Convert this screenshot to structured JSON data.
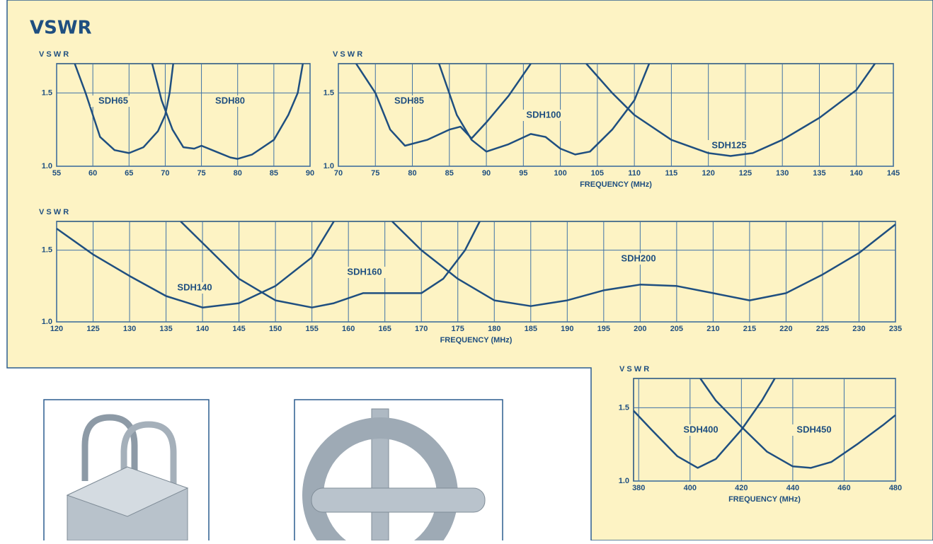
{
  "header": {
    "title": "VSWR"
  },
  "chart_data": [
    {
      "type": "line",
      "y_label": "V S W R",
      "xlim": [
        55,
        90
      ],
      "xticks": [
        55,
        60,
        65,
        70,
        75,
        80,
        85,
        90
      ],
      "ylim": [
        1,
        1.7
      ],
      "yticks": [
        {
          "value": 1,
          "label": "1.0"
        },
        1.5
      ],
      "grid": true,
      "series": [
        {
          "name": "SDH65",
          "color": "#1f4f80",
          "x": [
            57.5,
            59,
            61,
            63,
            65,
            67,
            69,
            70,
            70.6,
            71.1
          ],
          "values": [
            1.7,
            1.5,
            1.2,
            1.11,
            1.09,
            1.13,
            1.24,
            1.35,
            1.5,
            1.7
          ]
        },
        {
          "name": "SDH80",
          "color": "#1f4f80",
          "x": [
            68.2,
            69.5,
            71,
            72.5,
            74,
            75,
            77,
            79,
            80,
            82,
            85,
            87,
            88.3,
            89
          ],
          "values": [
            1.7,
            1.45,
            1.25,
            1.13,
            1.12,
            1.14,
            1.1,
            1.06,
            1.05,
            1.08,
            1.18,
            1.35,
            1.5,
            1.7
          ]
        }
      ]
    },
    {
      "type": "line",
      "y_label": "V S W R",
      "x_label": "FREQUENCY (MHz)",
      "xlim": [
        70,
        145
      ],
      "xticks": [
        70,
        75,
        80,
        85,
        90,
        95,
        100,
        105,
        110,
        115,
        120,
        125,
        130,
        135,
        140,
        145
      ],
      "ylim": [
        1,
        1.7
      ],
      "yticks": [
        {
          "value": 1,
          "label": "1.0"
        },
        1.5
      ],
      "grid": true,
      "series": [
        {
          "name": "SDH85",
          "color": "#1f4f80",
          "x": [
            72.4,
            75,
            77,
            79,
            82,
            85,
            86.5,
            88,
            90,
            93,
            96
          ],
          "values": [
            1.7,
            1.5,
            1.25,
            1.14,
            1.18,
            1.25,
            1.27,
            1.19,
            1.3,
            1.48,
            1.7
          ]
        },
        {
          "name": "SDH100",
          "color": "#1f4f80",
          "x": [
            83.6,
            86,
            88,
            90,
            93,
            96,
            98,
            100,
            102,
            104,
            107,
            110,
            112
          ],
          "values": [
            1.7,
            1.35,
            1.18,
            1.1,
            1.15,
            1.22,
            1.2,
            1.12,
            1.08,
            1.1,
            1.25,
            1.45,
            1.7
          ]
        },
        {
          "name": "SDH125",
          "color": "#1f4f80",
          "x": [
            103.5,
            107,
            110,
            115,
            120,
            123,
            126,
            130,
            135,
            140,
            142.5
          ],
          "values": [
            1.7,
            1.5,
            1.35,
            1.18,
            1.09,
            1.07,
            1.09,
            1.18,
            1.33,
            1.52,
            1.7
          ]
        }
      ]
    },
    {
      "type": "line",
      "y_label": "V S W R",
      "x_label": "FREQUENCY (MHz)",
      "xlim": [
        120,
        235
      ],
      "xticks": [
        120,
        125,
        130,
        135,
        140,
        145,
        150,
        155,
        160,
        165,
        170,
        175,
        180,
        185,
        190,
        195,
        200,
        205,
        210,
        215,
        220,
        225,
        230,
        235
      ],
      "ylim": [
        1,
        1.7
      ],
      "yticks": [
        {
          "value": 1,
          "label": "1.0"
        },
        1.5
      ],
      "grid": true,
      "series": [
        {
          "name": "SDH140",
          "color": "#1f4f80",
          "x": [
            120,
            125,
            130,
            135,
            140,
            145,
            150,
            155,
            158
          ],
          "values": [
            1.65,
            1.47,
            1.32,
            1.18,
            1.1,
            1.13,
            1.25,
            1.45,
            1.7
          ]
        },
        {
          "name": "SDH160",
          "color": "#1f4f80",
          "x": [
            137,
            140,
            145,
            150,
            155,
            158,
            162,
            165,
            170,
            173,
            176,
            178
          ],
          "values": [
            1.7,
            1.55,
            1.3,
            1.15,
            1.1,
            1.13,
            1.2,
            1.2,
            1.2,
            1.3,
            1.5,
            1.7
          ]
        },
        {
          "name": "SDH200",
          "color": "#1f4f80",
          "x": [
            166,
            170,
            175,
            180,
            185,
            190,
            195,
            200,
            205,
            210,
            215,
            220,
            225,
            230,
            235
          ],
          "values": [
            1.7,
            1.5,
            1.3,
            1.15,
            1.11,
            1.15,
            1.22,
            1.26,
            1.25,
            1.2,
            1.15,
            1.2,
            1.33,
            1.48,
            1.68
          ]
        }
      ]
    },
    {
      "type": "line",
      "y_label": "V S W R",
      "x_label": "FREQUENCY (MHz)",
      "xlim": [
        378,
        480
      ],
      "xticks": [
        380,
        400,
        420,
        440,
        460,
        480
      ],
      "ylim": [
        1,
        1.7
      ],
      "yticks": [
        {
          "value": 1,
          "label": "1.0"
        },
        1.5
      ],
      "grid": true,
      "series": [
        {
          "name": "SDH400",
          "color": "#1f4f80",
          "x": [
            378,
            385,
            395,
            403,
            410,
            420,
            428,
            433
          ],
          "values": [
            1.48,
            1.35,
            1.17,
            1.09,
            1.15,
            1.35,
            1.55,
            1.7
          ]
        },
        {
          "name": "SDH450",
          "color": "#1f4f80",
          "x": [
            404,
            410,
            420,
            430,
            440,
            447,
            455,
            465,
            475,
            480
          ],
          "values": [
            1.7,
            1.55,
            1.37,
            1.2,
            1.1,
            1.09,
            1.13,
            1.25,
            1.38,
            1.45
          ]
        }
      ]
    }
  ]
}
